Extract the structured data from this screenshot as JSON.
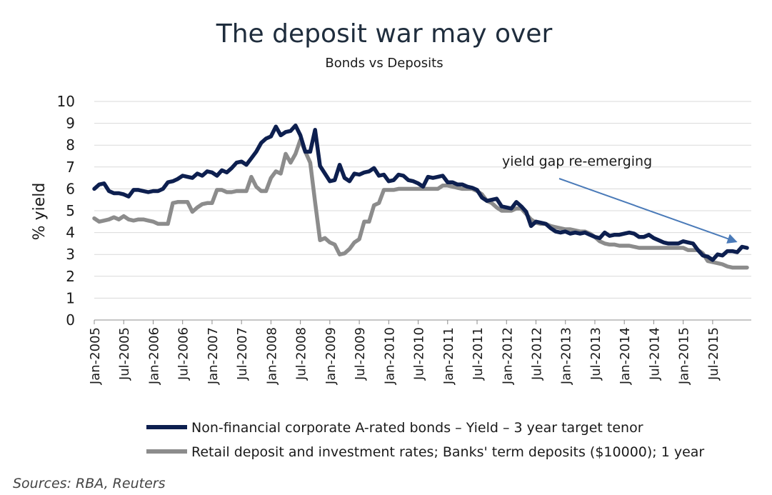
{
  "title": "The deposit war may over",
  "subtitle": "Bonds vs Deposits",
  "ylabel": "% yield",
  "annotation": "yield gap re-emerging",
  "source": "Sources: RBA, Reuters",
  "colors": {
    "bonds": "#0d1f4f",
    "deposits": "#8c8c8c",
    "arrow": "#4a7ab8"
  },
  "chart_data": {
    "type": "line",
    "title": "The deposit war may over",
    "subtitle": "Bonds vs Deposits",
    "ylabel": "% yield",
    "xlabel": "",
    "ylim": [
      0,
      10
    ],
    "yticks": [
      "0",
      "1",
      "2",
      "3",
      "4",
      "5",
      "6",
      "7",
      "8",
      "9",
      "10"
    ],
    "xticks": [
      "Jan-2005",
      "Jul-2005",
      "Jan-2006",
      "Jul-2006",
      "Jan-2007",
      "Jul-2007",
      "Jan-2008",
      "Jul-2008",
      "Jan-2009",
      "Jul-2009",
      "Jan-2010",
      "Jul-2010",
      "Jan-2011",
      "Jul-2011",
      "Jan-2012",
      "Jul-2012",
      "Jan-2013",
      "Jul-2013",
      "Jan-2014",
      "Jul-2014",
      "Jan-2015",
      "Jul-2015"
    ],
    "x_start": "Jan-2005",
    "x_end": "Nov-2015",
    "frequency": "monthly",
    "grid": "horizontal",
    "legend_position": "bottom",
    "series": [
      {
        "name": "Non-financial corporate A-rated bonds – Yield – 3 year target tenor",
        "values": [
          6.0,
          6.2,
          6.25,
          5.9,
          5.8,
          5.8,
          5.75,
          5.65,
          5.95,
          5.95,
          5.9,
          5.85,
          5.9,
          5.9,
          6.0,
          6.3,
          6.35,
          6.45,
          6.6,
          6.55,
          6.5,
          6.7,
          6.6,
          6.8,
          6.75,
          6.6,
          6.85,
          6.75,
          6.95,
          7.2,
          7.25,
          7.1,
          7.4,
          7.7,
          8.1,
          8.3,
          8.4,
          8.85,
          8.45,
          8.6,
          8.65,
          8.9,
          8.45,
          7.7,
          7.7,
          8.7,
          7.05,
          6.7,
          6.35,
          6.4,
          7.1,
          6.5,
          6.35,
          6.7,
          6.65,
          6.75,
          6.8,
          6.95,
          6.6,
          6.65,
          6.35,
          6.4,
          6.65,
          6.6,
          6.4,
          6.35,
          6.25,
          6.1,
          6.55,
          6.5,
          6.55,
          6.6,
          6.3,
          6.3,
          6.2,
          6.2,
          6.1,
          6.05,
          5.95,
          5.6,
          5.45,
          5.5,
          5.55,
          5.2,
          5.15,
          5.1,
          5.4,
          5.2,
          4.95,
          4.3,
          4.5,
          4.45,
          4.4,
          4.2,
          4.05,
          4.0,
          4.05,
          3.95,
          4.0,
          3.95,
          4.0,
          3.9,
          3.8,
          3.75,
          4.0,
          3.85,
          3.9,
          3.9,
          3.95,
          4.0,
          3.95,
          3.8,
          3.8,
          3.9,
          3.75,
          3.65,
          3.55,
          3.5,
          3.5,
          3.5,
          3.6,
          3.55,
          3.5,
          3.2,
          2.95,
          2.9,
          2.75,
          3.0,
          2.95,
          3.15,
          3.15,
          3.1,
          3.35,
          3.3
        ]
      },
      {
        "name": "Retail deposit and investment rates; Banks' term deposits ($10000); 1 year",
        "values": [
          4.65,
          4.5,
          4.55,
          4.6,
          4.7,
          4.6,
          4.75,
          4.6,
          4.55,
          4.6,
          4.6,
          4.55,
          4.5,
          4.4,
          4.4,
          4.4,
          5.35,
          5.4,
          5.4,
          5.4,
          4.95,
          5.15,
          5.3,
          5.35,
          5.35,
          5.95,
          5.95,
          5.85,
          5.85,
          5.9,
          5.9,
          5.9,
          6.55,
          6.1,
          5.9,
          5.9,
          6.5,
          6.8,
          6.7,
          7.6,
          7.2,
          7.6,
          8.25,
          7.7,
          7.2,
          5.4,
          3.65,
          3.75,
          3.55,
          3.45,
          3.0,
          3.05,
          3.25,
          3.55,
          3.7,
          4.5,
          4.5,
          5.25,
          5.35,
          5.95,
          5.95,
          5.95,
          6.0,
          6.0,
          6.0,
          6.0,
          6.0,
          6.0,
          6.0,
          6.0,
          6.0,
          6.15,
          6.15,
          6.1,
          6.05,
          6.0,
          6.0,
          6.0,
          5.9,
          5.75,
          5.45,
          5.35,
          5.15,
          5.0,
          5.0,
          5.0,
          5.1,
          5.1,
          4.85,
          4.6,
          4.45,
          4.4,
          4.4,
          4.3,
          4.25,
          4.2,
          4.15,
          4.15,
          4.1,
          4.05,
          4.05,
          3.95,
          3.8,
          3.6,
          3.5,
          3.45,
          3.45,
          3.4,
          3.4,
          3.4,
          3.35,
          3.3,
          3.3,
          3.3,
          3.3,
          3.3,
          3.3,
          3.3,
          3.3,
          3.3,
          3.3,
          3.2,
          3.2,
          3.2,
          3.05,
          2.7,
          2.65,
          2.6,
          2.55,
          2.45,
          2.4,
          2.4,
          2.4,
          2.4
        ]
      }
    ]
  }
}
